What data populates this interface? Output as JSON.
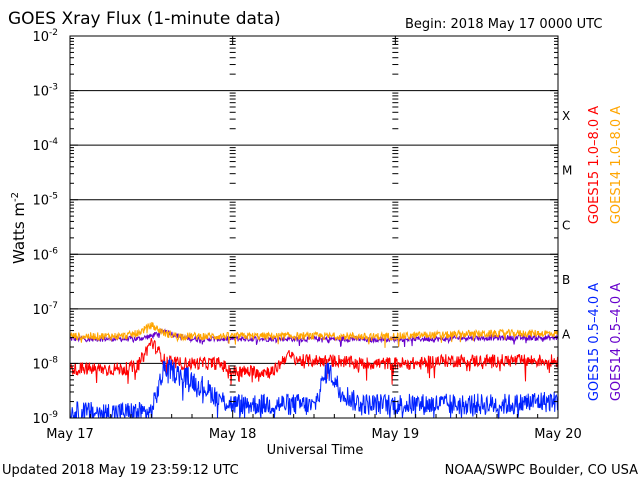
{
  "chart_data": {
    "type": "line",
    "title": "GOES Xray Flux (1-minute data)",
    "begin_label": "Begin:  2018 May 17 0000 UTC",
    "xlabel": "Universal Time",
    "ylabel": "Watts m",
    "ylabel_exponent": "-2",
    "y_scale": "log",
    "ylim_log10": [
      -9,
      -2
    ],
    "y_ticks": [
      {
        "base": "10",
        "exp": "-2",
        "log10": -2
      },
      {
        "base": "10",
        "exp": "-3",
        "log10": -3
      },
      {
        "base": "10",
        "exp": "-4",
        "log10": -4
      },
      {
        "base": "10",
        "exp": "-5",
        "log10": -5
      },
      {
        "base": "10",
        "exp": "-6",
        "log10": -6
      },
      {
        "base": "10",
        "exp": "-7",
        "log10": -7
      },
      {
        "base": "10",
        "exp": "-8",
        "log10": -8
      },
      {
        "base": "10",
        "exp": "-9",
        "log10": -9
      }
    ],
    "x_ticks": [
      {
        "label": "May 17",
        "hour": 0
      },
      {
        "label": "May 18",
        "hour": 24
      },
      {
        "label": "May 19",
        "hour": 48
      },
      {
        "label": "May 20",
        "hour": 72
      }
    ],
    "xlim_hours": [
      0,
      72
    ],
    "flare_classes": [
      {
        "label": "X",
        "log10": -4
      },
      {
        "label": "M",
        "log10": -5
      },
      {
        "label": "C",
        "log10": -6
      },
      {
        "label": "B",
        "log10": -7
      },
      {
        "label": "A",
        "log10": -8
      }
    ],
    "x_hours_step": 2,
    "series": [
      {
        "name": "GOES15 1.0–8.0 A",
        "color": "#ff0000",
        "noise": 0.12,
        "log10_values": [
          -8.1,
          -8.1,
          -8.1,
          -8.1,
          -8.1,
          -8.05,
          -7.6,
          -7.95,
          -8.0,
          -8.0,
          -8.0,
          -8.0,
          -8.15,
          -8.15,
          -8.15,
          -8.15,
          -7.85,
          -7.95,
          -7.95,
          -7.95,
          -7.95,
          -8.0,
          -8.0,
          -8.0,
          -8.0,
          -8.0,
          -8.0,
          -7.95,
          -7.95,
          -7.95,
          -7.95,
          -7.95,
          -7.95,
          -7.95,
          -7.95,
          -7.95,
          -7.95
        ]
      },
      {
        "name": "GOES14 1.0–8.0 A",
        "color": "#ffa500",
        "noise": 0.07,
        "log10_values": [
          -7.5,
          -7.5,
          -7.5,
          -7.5,
          -7.5,
          -7.45,
          -7.3,
          -7.45,
          -7.5,
          -7.5,
          -7.5,
          -7.5,
          -7.5,
          -7.5,
          -7.5,
          -7.5,
          -7.5,
          -7.5,
          -7.5,
          -7.5,
          -7.5,
          -7.5,
          -7.52,
          -7.5,
          -7.5,
          -7.5,
          -7.48,
          -7.48,
          -7.48,
          -7.46,
          -7.46,
          -7.46,
          -7.45,
          -7.45,
          -7.45,
          -7.45,
          -7.45
        ]
      },
      {
        "name": "GOES15 0.5–4.0 A",
        "color": "#0022ff",
        "noise": 0.2,
        "log10_values": [
          -8.9,
          -8.9,
          -8.9,
          -8.9,
          -8.9,
          -8.9,
          -8.9,
          -8.05,
          -8.2,
          -8.3,
          -8.45,
          -8.65,
          -8.75,
          -8.75,
          -8.75,
          -8.75,
          -8.75,
          -8.75,
          -8.8,
          -8.1,
          -8.5,
          -8.7,
          -8.75,
          -8.75,
          -8.75,
          -8.75,
          -8.75,
          -8.75,
          -8.75,
          -8.75,
          -8.75,
          -8.75,
          -8.75,
          -8.75,
          -8.7,
          -8.7,
          -8.7
        ]
      },
      {
        "name": "GOES14 0.5–4.0 A",
        "color": "#6600cc",
        "noise": 0.05,
        "log10_values": [
          -7.55,
          -7.55,
          -7.55,
          -7.55,
          -7.55,
          -7.55,
          -7.5,
          -7.4,
          -7.5,
          -7.55,
          -7.55,
          -7.55,
          -7.55,
          -7.55,
          -7.55,
          -7.55,
          -7.55,
          -7.55,
          -7.55,
          -7.55,
          -7.55,
          -7.55,
          -7.57,
          -7.55,
          -7.55,
          -7.55,
          -7.55,
          -7.55,
          -7.55,
          -7.53,
          -7.53,
          -7.53,
          -7.53,
          -7.53,
          -7.53,
          -7.53,
          -7.53
        ]
      }
    ]
  },
  "footer": {
    "updated": "Updated 2018 May 19 23:59:12 UTC",
    "source": "NOAA/SWPC Boulder, CO USA"
  }
}
